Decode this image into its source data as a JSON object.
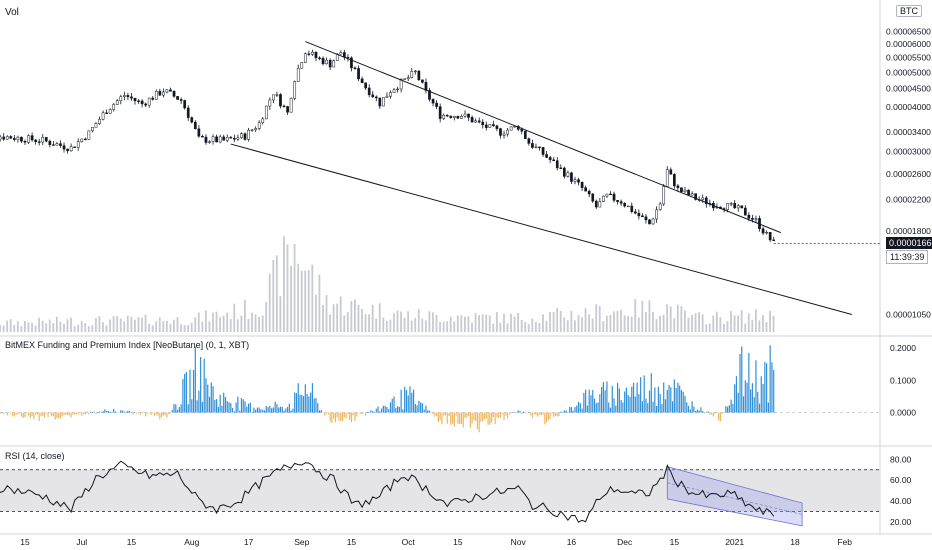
{
  "header": {
    "vol_label": "Vol",
    "currency_badge": "BTC"
  },
  "panes": {
    "funding_label": "BitMEX Funding and Premium Index [NeoButane] (0, 1, XBT)",
    "rsi_label": "RSI (14, close)"
  },
  "current": {
    "price": "0.00001663",
    "countdown": "11:39:39"
  },
  "colors": {
    "up": "#ffffff",
    "down": "#131722",
    "candle_outline": "#131722",
    "volume": "#c8cad1",
    "funding_pos": "#2f8fd9",
    "funding_neg": "#f0b65c",
    "rsi_line": "#131722",
    "rsi_band": "#e5e5e8",
    "channel": "#9c9ee8",
    "price_box": "#131722",
    "timer_box": "#ffffff"
  },
  "chart_data": [
    {
      "type": "candlestick",
      "title": "",
      "price_axis_ticks": [
        "0.00006500",
        "0.00006000",
        "0.00005500",
        "0.00005000",
        "0.00004500",
        "0.00004000",
        "0.00003400",
        "0.00003000",
        "0.00002600",
        "0.00002200",
        "0.00001800",
        "0.00001050"
      ],
      "time_axis_ticks": [
        "15",
        "Jul",
        "15",
        "Aug",
        "17",
        "Sep",
        "15",
        "Oct",
        "15",
        "Nov",
        "16",
        "Dec",
        "15",
        "2021",
        "18",
        "Feb"
      ],
      "scale": "log",
      "ylim": [
        9.5e-06,
        7.1e-05
      ],
      "price_path": [
        [
          "Jun 01",
          3.35e-05
        ],
        [
          "Jun 10",
          3.3e-05
        ],
        [
          "Jun 20",
          3.22e-05
        ],
        [
          "Jun 28",
          3.07e-05
        ],
        [
          "Jul 03",
          3.38e-05
        ],
        [
          "Jul 08",
          3.92e-05
        ],
        [
          "Jul 13",
          4.32e-05
        ],
        [
          "Jul 18",
          4.08e-05
        ],
        [
          "Jul 24",
          4.45e-05
        ],
        [
          "Jul 29",
          4.18e-05
        ],
        [
          "Aug 03",
          3.25e-05
        ],
        [
          "Aug 10",
          3.22e-05
        ],
        [
          "Aug 16",
          3.32e-05
        ],
        [
          "Aug 20",
          3.6e-05
        ],
        [
          "Aug 24",
          4.4e-05
        ],
        [
          "Aug 28",
          3.85e-05
        ],
        [
          "Aug 30",
          4.82e-05
        ],
        [
          "Sep 02",
          5.75e-05
        ],
        [
          "Sep 05",
          5.5e-05
        ],
        [
          "Sep 09",
          5.28e-05
        ],
        [
          "Sep 12",
          5.7e-05
        ],
        [
          "Sep 15",
          5.2e-05
        ],
        [
          "Sep 19",
          4.55e-05
        ],
        [
          "Sep 23",
          4.1e-05
        ],
        [
          "Sep 26",
          4.45e-05
        ],
        [
          "Sep 30",
          4.75e-05
        ],
        [
          "Oct 03",
          5e-05
        ],
        [
          "Oct 06",
          4.38e-05
        ],
        [
          "Oct 10",
          3.8e-05
        ],
        [
          "Oct 16",
          3.8e-05
        ],
        [
          "Oct 22",
          3.55e-05
        ],
        [
          "Oct 27",
          3.4e-05
        ],
        [
          "Nov 01",
          3.53e-05
        ],
        [
          "Nov 04",
          3.18e-05
        ],
        [
          "Nov 09",
          2.9e-05
        ],
        [
          "Nov 14",
          2.62e-05
        ],
        [
          "Nov 19",
          2.37e-05
        ],
        [
          "Nov 23",
          2.1e-05
        ],
        [
          "Nov 26",
          2.25e-05
        ],
        [
          "Nov 30",
          2.18e-05
        ],
        [
          "Dec 04",
          2.02e-05
        ],
        [
          "Dec 08",
          1.88e-05
        ],
        [
          "Dec 11",
          2.15e-05
        ],
        [
          "Dec 13",
          2.65e-05
        ],
        [
          "Dec 16",
          2.35e-05
        ],
        [
          "Dec 21",
          2.22e-05
        ],
        [
          "Dec 26",
          2.14e-05
        ],
        [
          "Dec 31",
          2.1e-05
        ],
        [
          "Jan 03",
          2.05e-05
        ],
        [
          "Jan 07",
          1.92e-05
        ],
        [
          "Jan 10",
          1.75e-05
        ],
        [
          "Jan 12",
          1.66e-05
        ]
      ],
      "wedge_lines": [
        [
          [
            "Sep 02",
            6.1e-05
          ],
          [
            "Jan 14",
            1.78e-05
          ]
        ],
        [
          [
            "Aug 12",
            3.15e-05
          ],
          [
            "Feb 03",
            1.05e-05
          ]
        ]
      ]
    },
    {
      "type": "bar",
      "title": "Vol",
      "relative_volume_path": [
        [
          "Jun 01",
          0.06
        ],
        [
          "Jul 01",
          0.08
        ],
        [
          "Aug 01",
          0.09
        ],
        [
          "Aug 20",
          0.18
        ],
        [
          "Aug 30",
          0.62
        ],
        [
          "Sep 08",
          0.22
        ],
        [
          "Oct 01",
          0.12
        ],
        [
          "Nov 01",
          0.1
        ],
        [
          "Dec 13",
          0.18
        ],
        [
          "Dec 20",
          0.1
        ],
        [
          "Jan 12",
          0.12
        ]
      ]
    },
    {
      "type": "bar",
      "title": "BitMEX Funding and Premium Index [NeoButane] (0, 1, XBT)",
      "y_ticks": [
        "0.2000",
        "0.1000",
        "0.0000"
      ],
      "ylim": [
        -0.085,
        0.225
      ],
      "value_path": [
        [
          "Jun 01",
          0.01
        ],
        [
          "Jun 20",
          -0.02
        ],
        [
          "Jul 10",
          0.008
        ],
        [
          "Jul 25",
          -0.02
        ],
        [
          "Aug 03",
          0.18
        ],
        [
          "Aug 08",
          0.06
        ],
        [
          "Aug 20",
          0.02
        ],
        [
          "Aug 29",
          0.03
        ],
        [
          "Sep 02",
          0.11
        ],
        [
          "Sep 08",
          -0.02
        ],
        [
          "Sep 15",
          -0.03
        ],
        [
          "Oct 01",
          0.07
        ],
        [
          "Oct 10",
          -0.03
        ],
        [
          "Oct 20",
          -0.05
        ],
        [
          "Nov 01",
          0.002
        ],
        [
          "Nov 10",
          -0.03
        ],
        [
          "Nov 20",
          0.06
        ],
        [
          "Nov 28",
          0.08
        ],
        [
          "Dec 07",
          0.1
        ],
        [
          "Dec 13",
          0.12
        ],
        [
          "Dec 20",
          0.03
        ],
        [
          "Dec 28",
          -0.02
        ],
        [
          "Jan 03",
          0.16
        ],
        [
          "Jan 08",
          0.13
        ],
        [
          "Jan 12",
          0.17
        ]
      ]
    },
    {
      "type": "line",
      "title": "RSI (14, close)",
      "y_ticks": [
        "80.00",
        "60.00",
        "40.00",
        "20.00"
      ],
      "ylim": [
        14,
        89
      ],
      "bands": [
        30,
        70
      ],
      "values_path": [
        [
          "Jun 01",
          55
        ],
        [
          "Jun 10",
          52
        ],
        [
          "Jun 20",
          45
        ],
        [
          "Jun 28",
          32
        ],
        [
          "Jul 05",
          62
        ],
        [
          "Jul 12",
          74
        ],
        [
          "Jul 20",
          64
        ],
        [
          "Jul 28",
          66
        ],
        [
          "Aug 03",
          40
        ],
        [
          "Aug 08",
          32
        ],
        [
          "Aug 14",
          40
        ],
        [
          "Aug 20",
          56
        ],
        [
          "Aug 25",
          68
        ],
        [
          "Aug 30",
          76
        ],
        [
          "Sep 02",
          80
        ],
        [
          "Sep 06",
          68
        ],
        [
          "Sep 10",
          60
        ],
        [
          "Sep 16",
          36
        ],
        [
          "Sep 22",
          42
        ],
        [
          "Sep 30",
          66
        ],
        [
          "Oct 06",
          52
        ],
        [
          "Oct 12",
          36
        ],
        [
          "Oct 20",
          44
        ],
        [
          "Oct 26",
          48
        ],
        [
          "Nov 01",
          52
        ],
        [
          "Nov 05",
          36
        ],
        [
          "Nov 10",
          32
        ],
        [
          "Nov 15",
          25
        ],
        [
          "Nov 20",
          20
        ],
        [
          "Nov 24",
          44
        ],
        [
          "Nov 28",
          52
        ],
        [
          "Dec 04",
          46
        ],
        [
          "Dec 08",
          48
        ],
        [
          "Dec 10",
          56
        ],
        [
          "Dec 13",
          70
        ],
        [
          "Dec 16",
          58
        ],
        [
          "Dec 20",
          48
        ],
        [
          "Dec 25",
          44
        ],
        [
          "Dec 31",
          47
        ],
        [
          "Jan 04",
          38
        ],
        [
          "Jan 08",
          30
        ],
        [
          "Jan 12",
          27
        ]
      ],
      "channel": [
        [
          [
            "Dec 13",
            73
          ],
          [
            "Jan 20",
            38
          ]
        ],
        [
          [
            "Dec 13",
            42
          ],
          [
            "Jan 20",
            16
          ]
        ]
      ]
    }
  ]
}
